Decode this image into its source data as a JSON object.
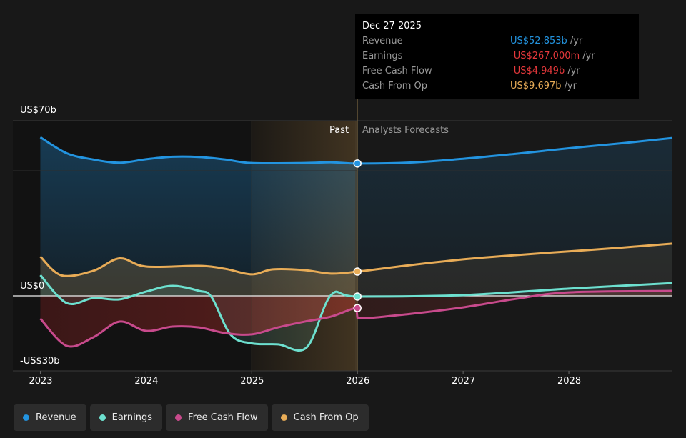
{
  "tooltip": {
    "date": "Dec 27 2025",
    "rows": [
      {
        "label": "Revenue",
        "value": "US$52.853b",
        "unit": "/yr",
        "color": "#2394e0"
      },
      {
        "label": "Earnings",
        "value": "-US$267.000m",
        "unit": "/yr",
        "color": "#e5383b"
      },
      {
        "label": "Free Cash Flow",
        "value": "-US$4.949b",
        "unit": "/yr",
        "color": "#e5383b"
      },
      {
        "label": "Cash From Op",
        "value": "US$9.697b",
        "unit": "/yr",
        "color": "#e8ac57"
      }
    ]
  },
  "legend": [
    {
      "label": "Revenue",
      "color": "#2394e0"
    },
    {
      "label": "Earnings",
      "color": "#6de0cf"
    },
    {
      "label": "Free Cash Flow",
      "color": "#c84a8c"
    },
    {
      "label": "Cash From Op",
      "color": "#e8ac57"
    }
  ],
  "chart_data": {
    "type": "line",
    "y_unit": "US$ billions",
    "ylim": [
      -30,
      70
    ],
    "xlim": [
      2022.74,
      2028.98
    ],
    "y_tick_labels": [
      "US$70b",
      "US$0",
      "-US$30b"
    ],
    "x_tick_labels": [
      "2023",
      "2024",
      "2025",
      "2026",
      "2027",
      "2028"
    ],
    "x_ticks": [
      2023,
      2024,
      2025,
      2026,
      2027,
      2028
    ],
    "grid": true,
    "past_label": "Past",
    "forecast_label": "Analysts Forecasts",
    "divider_x": 2026,
    "past_highlight_range": [
      2025,
      2026
    ],
    "series": [
      {
        "name": "Revenue",
        "color": "#2394e0",
        "x": [
          2023,
          2023.25,
          2023.5,
          2023.75,
          2024,
          2024.25,
          2024.5,
          2024.75,
          2025,
          2025.5,
          2025.75,
          2026,
          2026.5,
          2027,
          2027.5,
          2028,
          2028.5,
          2028.98
        ],
        "y": [
          63.4,
          57,
          54.5,
          53.2,
          54.6,
          55.6,
          55.5,
          54.5,
          53.1,
          53.1,
          53.4,
          52.9,
          53.3,
          54.8,
          56.8,
          59,
          61,
          63.1
        ]
      },
      {
        "name": "Cash From Op",
        "color": "#e8ac57",
        "x": [
          2023,
          2023.2,
          2023.5,
          2023.75,
          2024,
          2024.5,
          2024.75,
          2025,
          2025.2,
          2025.5,
          2025.75,
          2026,
          2026.5,
          2027,
          2027.5,
          2028,
          2028.5,
          2028.98
        ],
        "y": [
          15.7,
          8.2,
          10,
          15,
          11.7,
          12,
          10.8,
          8.6,
          10.6,
          10.3,
          8.9,
          9.7,
          12.3,
          14.6,
          16.3,
          17.8,
          19.3,
          20.9
        ]
      },
      {
        "name": "Earnings",
        "color": "#6de0cf",
        "x": [
          2023,
          2023.25,
          2023.5,
          2023.75,
          2024,
          2024.25,
          2024.5,
          2024.62,
          2024.8,
          2025,
          2025.25,
          2025.52,
          2025.75,
          2026,
          2027,
          2028,
          2028.98
        ],
        "y": [
          8.3,
          -2.9,
          -0.9,
          -1.4,
          1.7,
          4,
          2,
          -0.5,
          -15.5,
          -19,
          -19.4,
          -20.6,
          0.3,
          -0.27,
          0.3,
          2.9,
          5.1
        ]
      },
      {
        "name": "Free Cash Flow",
        "color": "#c84a8c",
        "x": [
          2023,
          2023.25,
          2023.5,
          2023.75,
          2024,
          2024.25,
          2024.5,
          2024.75,
          2025,
          2025.25,
          2025.5,
          2025.75,
          2025.99,
          2026,
          2026.5,
          2027,
          2027.5,
          2028,
          2028.98
        ],
        "y": [
          -9.1,
          -20,
          -16.6,
          -10.3,
          -14,
          -12.3,
          -12.6,
          -14.9,
          -15.4,
          -12.6,
          -10.3,
          -8.3,
          -4.9,
          -8.9,
          -7.2,
          -4.6,
          -1.2,
          1.4,
          2
        ]
      }
    ]
  }
}
